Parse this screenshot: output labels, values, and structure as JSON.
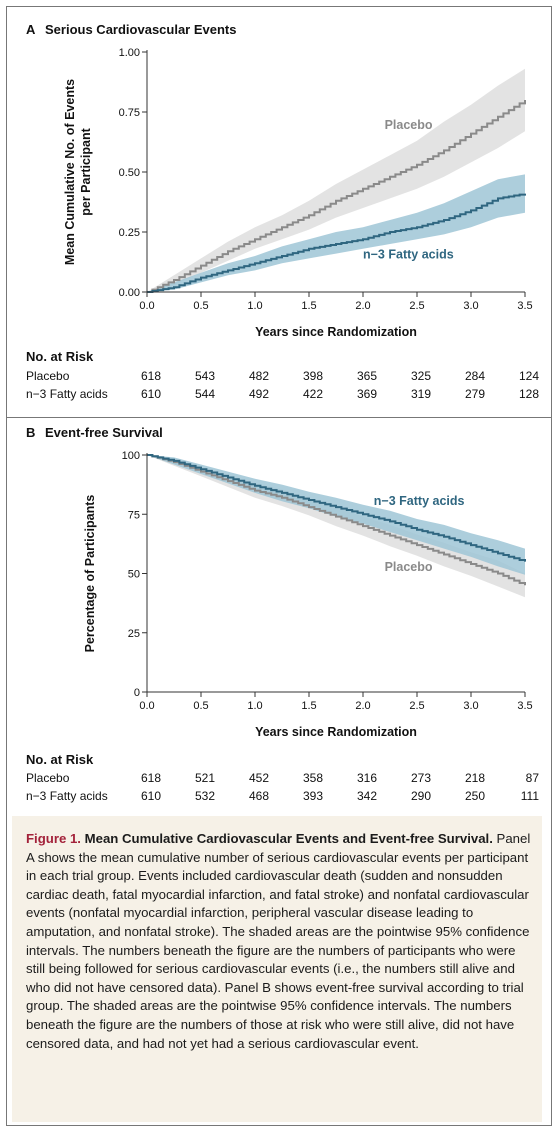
{
  "figure": {
    "caption_title": "Figure 1.",
    "caption_heading": "Mean Cumulative Cardiovascular Events and Event-free Survival.",
    "caption_body": "Panel A shows the mean cumulative number of serious cardiovascular events per participant in each trial group. Events included cardiovascular death (sudden and nonsudden cardiac death, fatal myocardial infarction, and fatal stroke) and nonfatal cardiovascular events (nonfatal myocardial infarction, peripheral vascular disease leading to amputation, and nonfatal stroke). The shaded areas are the pointwise 95% confidence intervals. The numbers beneath the figure are the numbers of participants who were still being followed for serious cardiovascular events (i.e., the numbers still alive and who did not have censored data). Panel B shows event-free survival according to trial group. The shaded areas are the pointwise 95% confidence intervals. The numbers beneath the figure are the numbers of those at risk who were still alive, did not have censored data, and had not yet had a serious cardiovascular event."
  },
  "colors": {
    "placebo": "#8a8a8a",
    "placebo_band": "#dedede",
    "fatty": "#2f6680",
    "fatty_band": "#9fc6d6"
  },
  "chart_data": [
    {
      "type": "line",
      "panel_letter": "A",
      "title": "Serious Cardiovascular Events",
      "xlabel": "Years since Randomization",
      "ylabel": "Mean Cumulative No. of Events per Participant",
      "ylabel_lines": [
        "Mean Cumulative No. of Events",
        "per Participant"
      ],
      "xlim": [
        0,
        3.5
      ],
      "ylim": [
        0,
        1.0
      ],
      "xticks": [
        0.0,
        0.5,
        1.0,
        1.5,
        2.0,
        2.5,
        3.0,
        3.5
      ],
      "xtick_labels": [
        "0.0",
        "0.5",
        "1.0",
        "1.5",
        "2.0",
        "2.5",
        "3.0",
        "3.5"
      ],
      "yticks": [
        0,
        0.25,
        0.5,
        0.75,
        1.0
      ],
      "ytick_labels": [
        "0.00",
        "0.25",
        "0.50",
        "0.75",
        "1.00"
      ],
      "series": [
        {
          "name": "Placebo",
          "key": "placebo",
          "x": [
            0,
            0.25,
            0.5,
            0.75,
            1.0,
            1.25,
            1.5,
            1.75,
            2.0,
            2.25,
            2.5,
            2.75,
            3.0,
            3.25,
            3.5
          ],
          "y": [
            0,
            0.05,
            0.11,
            0.17,
            0.22,
            0.27,
            0.32,
            0.38,
            0.43,
            0.48,
            0.53,
            0.59,
            0.66,
            0.73,
            0.8
          ],
          "lower": [
            0,
            0.03,
            0.08,
            0.13,
            0.18,
            0.22,
            0.26,
            0.31,
            0.35,
            0.39,
            0.43,
            0.48,
            0.54,
            0.6,
            0.67
          ],
          "upper": [
            0,
            0.07,
            0.14,
            0.21,
            0.27,
            0.32,
            0.38,
            0.45,
            0.51,
            0.57,
            0.63,
            0.71,
            0.78,
            0.86,
            0.93
          ]
        },
        {
          "name": "n−3 Fatty acids",
          "key": "fatty",
          "x": [
            0,
            0.25,
            0.5,
            0.75,
            1.0,
            1.25,
            1.5,
            1.75,
            2.0,
            2.25,
            2.5,
            2.75,
            3.0,
            3.25,
            3.5
          ],
          "y": [
            0,
            0.02,
            0.06,
            0.09,
            0.12,
            0.15,
            0.18,
            0.2,
            0.22,
            0.25,
            0.27,
            0.3,
            0.34,
            0.39,
            0.41
          ],
          "lower": [
            0,
            0.01,
            0.04,
            0.07,
            0.09,
            0.12,
            0.14,
            0.16,
            0.18,
            0.2,
            0.22,
            0.24,
            0.27,
            0.31,
            0.33
          ],
          "upper": [
            0,
            0.04,
            0.08,
            0.12,
            0.15,
            0.19,
            0.22,
            0.25,
            0.27,
            0.3,
            0.33,
            0.37,
            0.42,
            0.47,
            0.49
          ]
        }
      ],
      "annotations": [
        {
          "text": "Placebo",
          "series": "placebo",
          "x": 2.2,
          "y": 0.68
        },
        {
          "text": "n−3 Fatty acids",
          "series": "fatty",
          "x": 2.0,
          "y": 0.14
        }
      ],
      "risk_table": {
        "title": "No. at Risk",
        "rows": [
          {
            "label": "Placebo",
            "values": [
              618,
              543,
              482,
              398,
              365,
              325,
              284,
              124
            ]
          },
          {
            "label": "n−3 Fatty acids",
            "values": [
              610,
              544,
              492,
              422,
              369,
              319,
              279,
              128
            ]
          }
        ]
      }
    },
    {
      "type": "line",
      "panel_letter": "B",
      "title": "Event-free Survival",
      "xlabel": "Years since Randomization",
      "ylabel": "Percentage of Participants",
      "ylabel_lines": [
        "Percentage of Participants"
      ],
      "xlim": [
        0,
        3.5
      ],
      "ylim": [
        0,
        100
      ],
      "xticks": [
        0.0,
        0.5,
        1.0,
        1.5,
        2.0,
        2.5,
        3.0,
        3.5
      ],
      "xtick_labels": [
        "0.0",
        "0.5",
        "1.0",
        "1.5",
        "2.0",
        "2.5",
        "3.0",
        "3.5"
      ],
      "yticks": [
        0,
        25,
        50,
        75,
        100
      ],
      "ytick_labels": [
        "0",
        "25",
        "50",
        "75",
        "100"
      ],
      "series": [
        {
          "name": "Placebo",
          "key": "placebo",
          "x": [
            0,
            0.25,
            0.5,
            0.75,
            1.0,
            1.25,
            1.5,
            1.75,
            2.0,
            2.25,
            2.5,
            2.75,
            3.0,
            3.25,
            3.5
          ],
          "y": [
            100,
            97,
            93,
            89,
            85,
            82,
            78,
            74,
            70,
            66,
            62,
            58,
            54,
            50,
            45
          ],
          "lower": [
            100,
            95.5,
            91,
            86.5,
            82,
            78.5,
            74.5,
            70,
            66,
            61.5,
            57.5,
            53,
            49,
            44.5,
            40
          ],
          "upper": [
            100,
            98.5,
            95,
            91.5,
            88,
            85.5,
            81.5,
            78,
            74,
            70.5,
            66.5,
            63,
            59,
            55.5,
            50
          ]
        },
        {
          "name": "n−3 Fatty acids",
          "key": "fatty",
          "x": [
            0,
            0.25,
            0.5,
            0.75,
            1.0,
            1.25,
            1.5,
            1.75,
            2.0,
            2.25,
            2.5,
            2.75,
            3.0,
            3.25,
            3.5
          ],
          "y": [
            100,
            97.5,
            94,
            90.5,
            87,
            84,
            81,
            78,
            75,
            72,
            68.5,
            65.5,
            62,
            58.5,
            55
          ],
          "lower": [
            100,
            96,
            92,
            88,
            84,
            80.5,
            77.5,
            74,
            71,
            67.5,
            64,
            60.5,
            57,
            53,
            49.5
          ],
          "upper": [
            100,
            99,
            96,
            93,
            90,
            87.5,
            84.5,
            82,
            79,
            76.5,
            73,
            70.5,
            67,
            64,
            60.5
          ]
        }
      ],
      "annotations": [
        {
          "text": "n−3 Fatty acids",
          "series": "fatty",
          "x": 2.1,
          "y": 79
        },
        {
          "text": "Placebo",
          "series": "placebo",
          "x": 2.2,
          "y": 51
        }
      ],
      "risk_table": {
        "title": "No. at Risk",
        "rows": [
          {
            "label": "Placebo",
            "values": [
              618,
              521,
              452,
              358,
              316,
              273,
              218,
              87
            ]
          },
          {
            "label": "n−3 Fatty acids",
            "values": [
              610,
              532,
              468,
              393,
              342,
              290,
              250,
              111
            ]
          }
        ]
      }
    }
  ]
}
